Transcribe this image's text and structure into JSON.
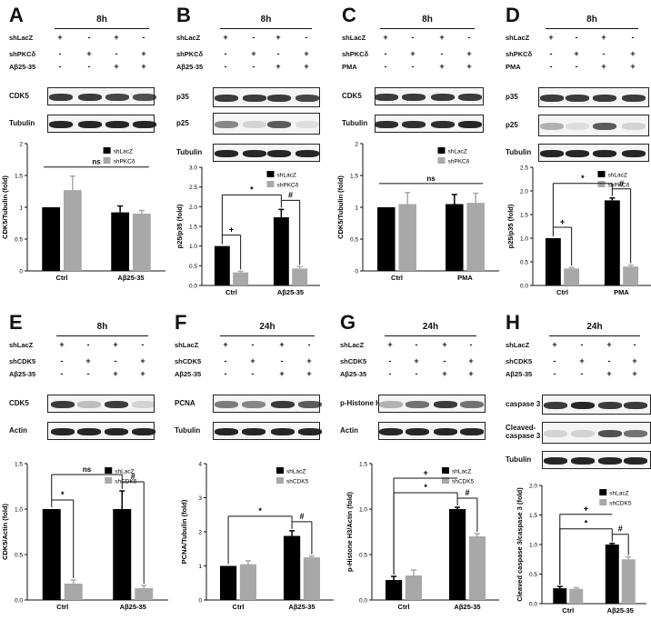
{
  "panels": [
    {
      "letter": "A",
      "time": "8h",
      "conds": [
        "shLacZ",
        "shPKCδ",
        "Aβ25-35"
      ],
      "signs": [
        [
          "+",
          "-",
          "+",
          "-"
        ],
        [
          "-",
          "+",
          "-",
          "+"
        ],
        [
          "-",
          "-",
          "+",
          "+"
        ]
      ],
      "blots": [
        {
          "label": "CDK5",
          "bands": [
            0.85,
            0.85,
            0.8,
            0.75
          ]
        },
        {
          "label": "Tubulin",
          "bands": [
            0.95,
            0.95,
            0.95,
            0.95
          ]
        }
      ],
      "legend": [
        "shLacZ",
        "shPKCδ"
      ],
      "chart": {
        "ylabel": "CDK5/Tubulin (fold)",
        "categories": [
          "Ctrl",
          "Aβ25-35"
        ],
        "ylim": [
          0,
          2
        ],
        "ticks": [
          "0",
          "0.5",
          "1",
          "1.5",
          "2"
        ],
        "values": [
          [
            1.0,
            1.27
          ],
          [
            0.92,
            0.9
          ]
        ],
        "errors": [
          [
            0,
            0.22
          ],
          [
            0.1,
            0.05
          ]
        ],
        "annotations": [
          {
            "text": "ns",
            "type": "line"
          }
        ]
      }
    },
    {
      "letter": "B",
      "time": "8h",
      "conds": [
        "shLacZ",
        "shPKCδ",
        "Aβ25-35"
      ],
      "signs": [
        [
          "+",
          "-",
          "+",
          "-"
        ],
        [
          "-",
          "+",
          "-",
          "+"
        ],
        [
          "-",
          "-",
          "+",
          "+"
        ]
      ],
      "blots": [
        {
          "label": "p35",
          "bands": [
            0.85,
            0.85,
            0.85,
            0.8
          ]
        },
        {
          "label": "p25",
          "bands": [
            0.5,
            0.15,
            0.7,
            0.1
          ]
        },
        {
          "label": "Tubulin",
          "bands": [
            0.95,
            0.95,
            0.95,
            0.95
          ]
        }
      ],
      "legend": [
        "shLacZ",
        "shPKCδ"
      ],
      "chart": {
        "ylabel": "p25/p35 (fold)",
        "categories": [
          "Ctrl",
          "Aβ25-35"
        ],
        "ylim": [
          0,
          3
        ],
        "ticks": [
          "0.0",
          "0.5",
          "1.0",
          "1.5",
          "2.0",
          "2.5",
          "3.0"
        ],
        "values": [
          [
            1.0,
            0.33
          ],
          [
            1.73,
            0.43
          ]
        ],
        "errors": [
          [
            0,
            0.03
          ],
          [
            0.2,
            0.05
          ]
        ],
        "annotations": [
          {
            "text": "+"
          },
          {
            "text": "*"
          },
          {
            "text": "#"
          }
        ]
      }
    },
    {
      "letter": "C",
      "time": "8h",
      "conds": [
        "shLacZ",
        "shPKCδ",
        "PMA"
      ],
      "signs": [
        [
          "+",
          "-",
          "+",
          "-"
        ],
        [
          "-",
          "+",
          "-",
          "+"
        ],
        [
          "-",
          "-",
          "+",
          "+"
        ]
      ],
      "blots": [
        {
          "label": "CDK5",
          "bands": [
            0.85,
            0.85,
            0.85,
            0.85
          ]
        },
        {
          "label": "Tubulin",
          "bands": [
            0.9,
            0.9,
            0.9,
            0.95
          ]
        }
      ],
      "legend": [
        "shLacZ",
        "shPKCδ"
      ],
      "chart": {
        "ylabel": "CDK5/Tubulin (fold)",
        "categories": [
          "Ctrl",
          "PMA"
        ],
        "ylim": [
          0,
          2
        ],
        "ticks": [
          "0",
          "0.5",
          "1",
          "1.5",
          "2"
        ],
        "values": [
          [
            1.0,
            1.05
          ],
          [
            1.05,
            1.07
          ]
        ],
        "errors": [
          [
            0,
            0.18
          ],
          [
            0.15,
            0.15
          ]
        ],
        "annotations": [
          {
            "text": "ns"
          }
        ]
      }
    },
    {
      "letter": "D",
      "time": "8h",
      "conds": [
        "shLacZ",
        "shPKCδ",
        "PMA"
      ],
      "signs": [
        [
          "+",
          "-",
          "+",
          "-"
        ],
        [
          "-",
          "+",
          "-",
          "+"
        ],
        [
          "-",
          "-",
          "+",
          "+"
        ]
      ],
      "blots": [
        {
          "label": "p35",
          "bands": [
            0.85,
            0.85,
            0.85,
            0.85
          ]
        },
        {
          "label": "p25",
          "bands": [
            0.3,
            0.1,
            0.7,
            0.15
          ]
        },
        {
          "label": "Tubulin",
          "bands": [
            0.95,
            0.95,
            0.95,
            0.95
          ]
        }
      ],
      "legend": [
        "shLacZ",
        "shPKCδ"
      ],
      "chart": {
        "ylabel": "p25/p35 (fold)",
        "categories": [
          "Ctrl",
          "PMA"
        ],
        "ylim": [
          0,
          2.5
        ],
        "ticks": [
          "0.0",
          "0.5",
          "1.0",
          "1.5",
          "2.0",
          "2.5"
        ],
        "values": [
          [
            1.0,
            0.36
          ],
          [
            1.8,
            0.4
          ]
        ],
        "errors": [
          [
            0,
            0.02
          ],
          [
            0.05,
            0.03
          ]
        ],
        "annotations": [
          {
            "text": "+"
          },
          {
            "text": "*"
          },
          {
            "text": "#"
          }
        ]
      }
    },
    {
      "letter": "E",
      "time": "8h",
      "conds": [
        "shLacZ",
        "shCDK5",
        "Aβ25-35"
      ],
      "signs": [
        [
          "+",
          "-",
          "+",
          "-"
        ],
        [
          "-",
          "+",
          "-",
          "+"
        ],
        [
          "-",
          "-",
          "+",
          "+"
        ]
      ],
      "blots": [
        {
          "label": "CDK5",
          "bands": [
            0.85,
            0.25,
            0.85,
            0.15
          ]
        },
        {
          "label": "Actin",
          "bands": [
            0.95,
            0.95,
            0.95,
            0.95
          ]
        }
      ],
      "legend": [
        "shLacZ",
        "shCDK5"
      ],
      "chart": {
        "ylabel": "CDK5/Actin (fold)",
        "categories": [
          "Ctrl",
          "Aβ25-35"
        ],
        "ylim": [
          0,
          1.5
        ],
        "ticks": [
          "0.0",
          "0.5",
          "1.0",
          "1.5"
        ],
        "values": [
          [
            1.0,
            0.18
          ],
          [
            1.0,
            0.13
          ]
        ],
        "errors": [
          [
            0,
            0.04
          ],
          [
            0.2,
            0.03
          ]
        ],
        "annotations": [
          {
            "text": "*"
          },
          {
            "text": "ns"
          },
          {
            "text": "#"
          }
        ]
      }
    },
    {
      "letter": "F",
      "time": "24h",
      "conds": [
        "shLacZ",
        "shCDK5",
        "Aβ25-35"
      ],
      "signs": [
        [
          "+",
          "-",
          "+",
          "-"
        ],
        [
          "-",
          "+",
          "-",
          "+"
        ],
        [
          "-",
          "-",
          "+",
          "+"
        ]
      ],
      "blots": [
        {
          "label": "PCNA",
          "bands": [
            0.55,
            0.5,
            0.85,
            0.7
          ]
        },
        {
          "label": "Tubulin",
          "bands": [
            0.95,
            0.95,
            0.95,
            0.95
          ]
        }
      ],
      "legend": [
        "shLacZ",
        "shCDK5"
      ],
      "chart": {
        "ylabel": "PCNA/Tubulin (fold)",
        "categories": [
          "Ctrl",
          "Aβ25-35"
        ],
        "ylim": [
          0,
          4
        ],
        "ticks": [
          "0",
          "1",
          "2",
          "3",
          "4"
        ],
        "values": [
          [
            1.0,
            1.05
          ],
          [
            1.88,
            1.25
          ]
        ],
        "errors": [
          [
            0,
            0.1
          ],
          [
            0.15,
            0.04
          ]
        ],
        "annotations": [
          {
            "text": "*"
          },
          {
            "text": "#"
          }
        ]
      }
    },
    {
      "letter": "G",
      "time": "24h",
      "conds": [
        "shLacZ",
        "shCDK5",
        "Aβ25-35"
      ],
      "signs": [
        [
          "+",
          "-",
          "+",
          "-"
        ],
        [
          "-",
          "+",
          "-",
          "+"
        ],
        [
          "-",
          "-",
          "+",
          "+"
        ]
      ],
      "blots": [
        {
          "label": "p-Histone H3",
          "bands": [
            0.3,
            0.6,
            0.85,
            0.6
          ]
        },
        {
          "label": "Actin",
          "bands": [
            0.95,
            0.95,
            0.95,
            0.95
          ]
        }
      ],
      "legend": [
        "shLacZ",
        "shCDK5"
      ],
      "chart": {
        "ylabel": "p-Histone H3/Actin (fold)",
        "categories": [
          "Ctrl",
          "Aβ25-35"
        ],
        "ylim": [
          0,
          1.5
        ],
        "ticks": [
          "0.0",
          "0.5",
          "1.0",
          "1.5"
        ],
        "values": [
          [
            0.22,
            0.27
          ],
          [
            1.0,
            0.7
          ]
        ],
        "errors": [
          [
            0.04,
            0.06
          ],
          [
            0.02,
            0.03
          ]
        ],
        "annotations": [
          {
            "text": "+"
          },
          {
            "text": "*"
          },
          {
            "text": "#"
          }
        ]
      }
    },
    {
      "letter": "H",
      "time": "24h",
      "conds": [
        "shLacZ",
        "shCDK5",
        "Aβ25-35"
      ],
      "signs": [
        [
          "+",
          "-",
          "+",
          "-"
        ],
        [
          "-",
          "+",
          "-",
          "+"
        ],
        [
          "-",
          "-",
          "+",
          "+"
        ]
      ],
      "blots": [
        {
          "label": "caspase 3",
          "bands": [
            0.85,
            0.95,
            0.85,
            0.85
          ]
        },
        {
          "label": "Cleaved-\ncaspase 3",
          "bands": [
            0.15,
            0.15,
            0.75,
            0.6
          ]
        },
        {
          "label": "Tubulin",
          "bands": [
            0.95,
            0.95,
            0.95,
            0.95
          ]
        }
      ],
      "legend": [
        "shLacZ",
        "shCDK5"
      ],
      "chart": {
        "ylabel": "Cleaved caspase 3/caspase 3 (fold)",
        "categories": [
          "Ctrl",
          "Aβ25-35"
        ],
        "ylim": [
          0,
          2
        ],
        "ticks": [
          "0.0",
          "0.5",
          "1.0",
          "1.5",
          "2.0"
        ],
        "values": [
          [
            0.26,
            0.25
          ],
          [
            1.0,
            0.75
          ]
        ],
        "errors": [
          [
            0.03,
            0.02
          ],
          [
            0.02,
            0.04
          ]
        ],
        "annotations": [
          {
            "text": "+"
          },
          {
            "text": "*"
          },
          {
            "text": "#"
          }
        ]
      }
    }
  ],
  "chart_data": [
    {
      "type": "bar",
      "panel": "A",
      "ylabel": "CDK5/Tubulin (fold)",
      "categories": [
        "Ctrl",
        "Aβ25-35"
      ],
      "ylim": [
        0,
        2
      ],
      "series": [
        {
          "name": "shLacZ",
          "values": [
            1.0,
            0.92
          ]
        },
        {
          "name": "shPKCδ",
          "values": [
            1.27,
            0.9
          ]
        }
      ]
    },
    {
      "type": "bar",
      "panel": "B",
      "ylabel": "p25/p35 (fold)",
      "categories": [
        "Ctrl",
        "Aβ25-35"
      ],
      "ylim": [
        0,
        3
      ],
      "series": [
        {
          "name": "shLacZ",
          "values": [
            1.0,
            1.73
          ]
        },
        {
          "name": "shPKCδ",
          "values": [
            0.33,
            0.43
          ]
        }
      ]
    },
    {
      "type": "bar",
      "panel": "C",
      "ylabel": "CDK5/Tubulin (fold)",
      "categories": [
        "Ctrl",
        "PMA"
      ],
      "ylim": [
        0,
        2
      ],
      "series": [
        {
          "name": "shLacZ",
          "values": [
            1.0,
            1.05
          ]
        },
        {
          "name": "shPKCδ",
          "values": [
            1.05,
            1.07
          ]
        }
      ]
    },
    {
      "type": "bar",
      "panel": "D",
      "ylabel": "p25/p35 (fold)",
      "categories": [
        "Ctrl",
        "PMA"
      ],
      "ylim": [
        0,
        2.5
      ],
      "series": [
        {
          "name": "shLacZ",
          "values": [
            1.0,
            1.8
          ]
        },
        {
          "name": "shPKCδ",
          "values": [
            0.36,
            0.4
          ]
        }
      ]
    },
    {
      "type": "bar",
      "panel": "E",
      "ylabel": "CDK5/Actin (fold)",
      "categories": [
        "Ctrl",
        "Aβ25-35"
      ],
      "ylim": [
        0,
        1.5
      ],
      "series": [
        {
          "name": "shLacZ",
          "values": [
            1.0,
            1.0
          ]
        },
        {
          "name": "shCDK5",
          "values": [
            0.18,
            0.13
          ]
        }
      ]
    },
    {
      "type": "bar",
      "panel": "F",
      "ylabel": "PCNA/Tubulin (fold)",
      "categories": [
        "Ctrl",
        "Aβ25-35"
      ],
      "ylim": [
        0,
        4
      ],
      "series": [
        {
          "name": "shLacZ",
          "values": [
            1.0,
            1.88
          ]
        },
        {
          "name": "shCDK5",
          "values": [
            1.05,
            1.25
          ]
        }
      ]
    },
    {
      "type": "bar",
      "panel": "G",
      "ylabel": "p-Histone H3/Actin (fold)",
      "categories": [
        "Ctrl",
        "Aβ25-35"
      ],
      "ylim": [
        0,
        1.5
      ],
      "series": [
        {
          "name": "shLacZ",
          "values": [
            0.22,
            1.0
          ]
        },
        {
          "name": "shCDK5",
          "values": [
            0.27,
            0.7
          ]
        }
      ]
    },
    {
      "type": "bar",
      "panel": "H",
      "ylabel": "Cleaved caspase 3/caspase 3 (fold)",
      "categories": [
        "Ctrl",
        "Aβ25-35"
      ],
      "ylim": [
        0,
        2
      ],
      "series": [
        {
          "name": "shLacZ",
          "values": [
            0.26,
            1.0
          ]
        },
        {
          "name": "shCDK5",
          "values": [
            0.25,
            0.75
          ]
        }
      ]
    }
  ],
  "colors": {
    "bar_dark": "#000000",
    "bar_light": "#a8a8a8",
    "band": "#1a1a1a"
  }
}
